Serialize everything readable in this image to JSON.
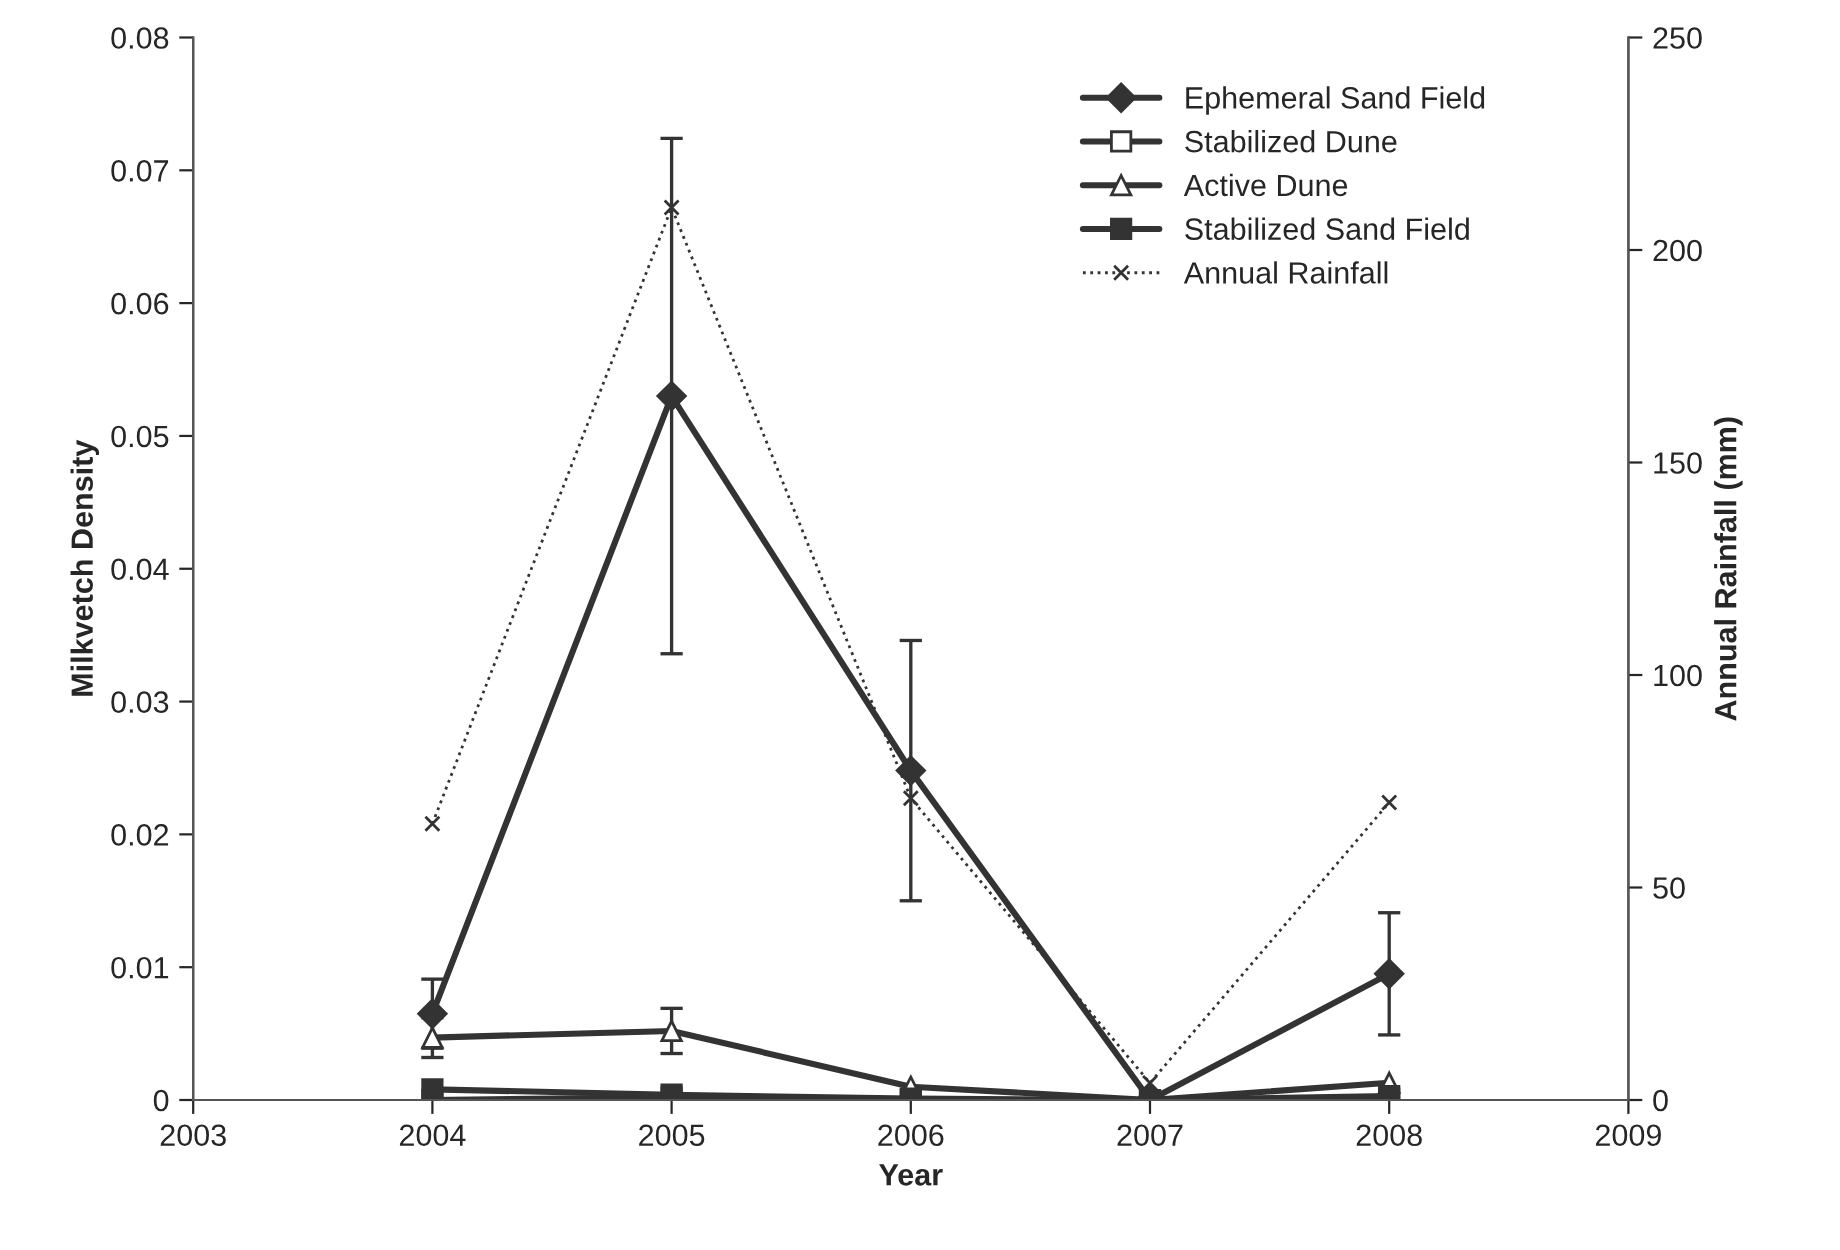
{
  "chart_data": {
    "type": "line",
    "xlabel": "Year",
    "ylabel": "Milkvetch Density",
    "y2label": "Annual Rainfall (mm)",
    "x": [
      2004,
      2005,
      2006,
      2007,
      2008
    ],
    "xlim": [
      2003,
      2009
    ],
    "xticks": [
      2003,
      2004,
      2005,
      2006,
      2007,
      2008,
      2009
    ],
    "ylim": [
      0,
      0.08
    ],
    "yticks": [
      0,
      0.01,
      0.02,
      0.03,
      0.04,
      0.05,
      0.06,
      0.07,
      0.08
    ],
    "y2lim": [
      0,
      250
    ],
    "y2ticks": [
      0,
      50,
      100,
      150,
      200,
      250
    ],
    "grid": false,
    "legend": "top right",
    "series": [
      {
        "name": "Ephemeral Sand Field",
        "color": "#333333",
        "marker": "diamond",
        "line_style": "solid",
        "values": [
          0.0065,
          0.053,
          0.0248,
          0,
          0.0095
        ],
        "errors": [
          0.0026,
          0.0194,
          0.0098,
          null,
          0.0046
        ]
      },
      {
        "name": "Stabilized Dune",
        "color": "#333333",
        "marker": "square",
        "line_style": "solid",
        "values": [
          0,
          0.0002,
          0,
          0,
          0.0001
        ]
      },
      {
        "name": "Active Dune",
        "color": "#333333",
        "marker": "triangle",
        "line_style": "solid",
        "values": [
          0.0047,
          0.0052,
          0.001,
          0,
          0.0013
        ],
        "errors": [
          0.0015,
          0.0017,
          null,
          null,
          null
        ]
      },
      {
        "name": "Stabilized Sand Field",
        "color": "#333333",
        "marker": "square",
        "line_style": "solid",
        "values": [
          0.0008,
          0.0004,
          0.0001,
          0,
          0.0003
        ]
      },
      {
        "name": "Annual Rainfall",
        "color": "#333333",
        "marker": "cross",
        "line_style": "dotted",
        "axis": "y2",
        "values": [
          65,
          210,
          71,
          4,
          70
        ]
      }
    ]
  }
}
